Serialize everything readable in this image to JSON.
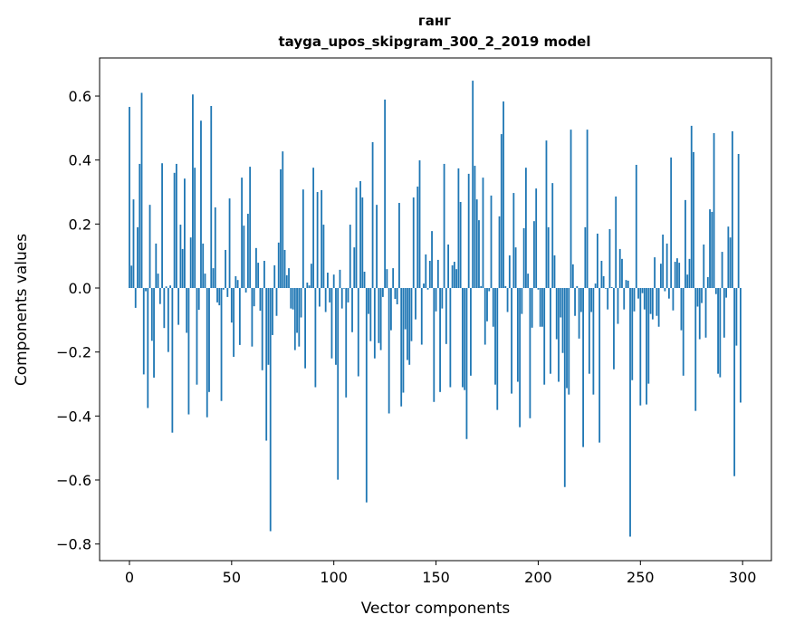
{
  "chart_data": {
    "type": "bar",
    "title": "ганг",
    "subtitle": "tayga_upos_skipgram_300_2_2019 model",
    "xlabel": "Vector components",
    "ylabel": "Components values",
    "xlim": [
      -14.6,
      314.1
    ],
    "ylim": [
      -0.852,
      0.719
    ],
    "xticks": [
      0,
      50,
      100,
      150,
      200,
      250,
      300
    ],
    "xtick_labels": [
      "0",
      "50",
      "100",
      "150",
      "200",
      "250",
      "300"
    ],
    "yticks": [
      0.6,
      0.4,
      0.2,
      0.0,
      -0.2,
      -0.4,
      -0.6,
      -0.8
    ],
    "ytick_labels": [
      "0.6",
      "0.4",
      "0.2",
      "0.0",
      "−0.2",
      "−0.4",
      "−0.6",
      "−0.8"
    ],
    "grid": false,
    "color": "#1f77b4",
    "values": [
      0.566,
      0.07,
      0.277,
      -0.062,
      0.19,
      0.388,
      0.61,
      -0.27,
      -0.01,
      -0.375,
      0.26,
      -0.165,
      -0.28,
      0.139,
      0.045,
      -0.05,
      0.39,
      -0.125,
      0.005,
      -0.2,
      0.008,
      -0.452,
      0.36,
      0.388,
      -0.115,
      0.198,
      0.122,
      0.342,
      -0.14,
      -0.395,
      0.158,
      0.605,
      0.376,
      -0.302,
      -0.068,
      0.523,
      0.139,
      0.045,
      -0.404,
      -0.325,
      0.569,
      0.062,
      0.252,
      -0.045,
      -0.054,
      -0.353,
      -0.005,
      0.119,
      -0.028,
      0.28,
      -0.108,
      -0.215,
      0.037,
      0.025,
      -0.178,
      0.345,
      0.195,
      -0.014,
      0.232,
      0.379,
      -0.183,
      -0.057,
      0.125,
      0.079,
      -0.071,
      -0.257,
      0.085,
      -0.477,
      -0.24,
      -0.76,
      -0.147,
      0.071,
      -0.087,
      0.142,
      0.371,
      0.427,
      0.119,
      0.04,
      0.062,
      -0.064,
      -0.067,
      -0.194,
      -0.14,
      -0.183,
      -0.092,
      0.308,
      -0.251,
      0.017,
      0.008,
      0.076,
      0.376,
      -0.31,
      0.3,
      -0.058,
      0.306,
      0.198,
      -0.075,
      0.048,
      -0.045,
      -0.22,
      0.042,
      -0.24,
      -0.599,
      0.057,
      -0.064,
      -0.002,
      -0.342,
      -0.045,
      0.198,
      -0.138,
      0.127,
      0.314,
      -0.276,
      0.334,
      0.283,
      0.051,
      -0.67,
      -0.081,
      -0.166,
      0.456,
      -0.22,
      0.26,
      -0.172,
      -0.194,
      -0.028,
      0.589,
      0.059,
      -0.392,
      -0.132,
      0.062,
      -0.034,
      -0.051,
      0.266,
      -0.37,
      -0.327,
      -0.129,
      -0.225,
      -0.24,
      -0.166,
      0.283,
      -0.098,
      0.317,
      0.399,
      -0.177,
      0.014,
      0.105,
      -0.005,
      0.085,
      0.178,
      -0.356,
      -0.073,
      0.088,
      -0.325,
      -0.064,
      0.388,
      -0.175,
      0.136,
      -0.31,
      0.071,
      0.082,
      0.059,
      0.374,
      0.269,
      -0.31,
      -0.319,
      -0.472,
      0.357,
      -0.274,
      0.648,
      0.382,
      0.277,
      0.212,
      0.006,
      0.345,
      -0.177,
      -0.104,
      -0.01,
      0.289,
      -0.121,
      -0.302,
      -0.381,
      0.224,
      0.481,
      0.583,
      0.006,
      -0.075,
      0.102,
      -0.33,
      0.297,
      0.127,
      -0.293,
      -0.435,
      -0.081,
      0.187,
      0.376,
      0.045,
      -0.407,
      -0.124,
      0.209,
      0.311,
      -0.005,
      -0.121,
      -0.121,
      -0.302,
      0.461,
      0.19,
      -0.268,
      0.328,
      0.102,
      -0.16,
      -0.293,
      -0.092,
      -0.203,
      -0.622,
      -0.313,
      -0.333,
      0.495,
      0.074,
      -0.087,
      0.006,
      -0.158,
      -0.075,
      -0.497,
      0.19,
      0.495,
      -0.268,
      -0.075,
      -0.333,
      0.014,
      0.17,
      -0.483,
      0.085,
      0.037,
      -0.002,
      -0.067,
      0.184,
      0.003,
      -0.254,
      0.286,
      -0.112,
      0.122,
      0.091,
      -0.067,
      0.025,
      0.023,
      -0.777,
      -0.288,
      -0.073,
      0.385,
      -0.033,
      -0.367,
      -0.016,
      -0.067,
      -0.364,
      -0.299,
      -0.081,
      -0.098,
      0.096,
      -0.087,
      -0.121,
      0.076,
      0.167,
      -0.01,
      0.139,
      -0.033,
      0.408,
      -0.07,
      0.082,
      0.093,
      0.079,
      -0.132,
      -0.274,
      0.275,
      0.042,
      0.091,
      0.507,
      0.425,
      -0.384,
      -0.058,
      -0.16,
      -0.047,
      0.136,
      -0.155,
      0.034,
      0.246,
      0.238,
      0.484,
      -0.019,
      -0.268,
      -0.279,
      0.113,
      -0.155,
      -0.03,
      0.192,
      0.158,
      0.49,
      -0.588,
      -0.18,
      0.419,
      -0.358
    ]
  }
}
